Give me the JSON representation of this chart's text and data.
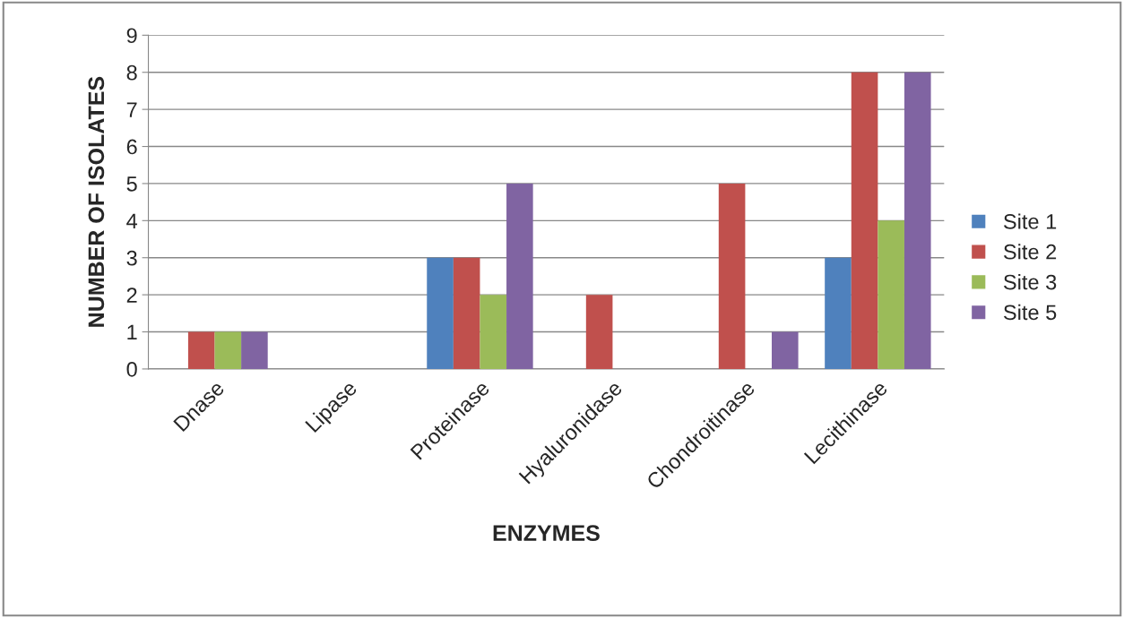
{
  "chart_data": {
    "type": "bar",
    "xlabel": "ENZYMES",
    "ylabel": "NUMBER OF ISOLATES",
    "categories": [
      "Dnase",
      "Lipase",
      "Proteinase",
      "Hyaluronidase",
      "Chondroitinase",
      "Lecithinase"
    ],
    "series": [
      {
        "name": "Site 1",
        "color": "#4f81bd",
        "values": [
          0,
          0,
          3,
          0,
          0,
          3
        ]
      },
      {
        "name": "Site 2",
        "color": "#c0504d",
        "values": [
          1,
          0,
          3,
          2,
          5,
          8
        ]
      },
      {
        "name": "Site 3",
        "color": "#9bbb59",
        "values": [
          1,
          0,
          2,
          0,
          0,
          4
        ]
      },
      {
        "name": "Site 5",
        "color": "#8064a2",
        "values": [
          1,
          0,
          5,
          0,
          1,
          8
        ]
      }
    ],
    "ylim": [
      0,
      9
    ],
    "yticks": [
      0,
      1,
      2,
      3,
      4,
      5,
      6,
      7,
      8,
      9
    ],
    "grid": "y",
    "legend": "right"
  }
}
